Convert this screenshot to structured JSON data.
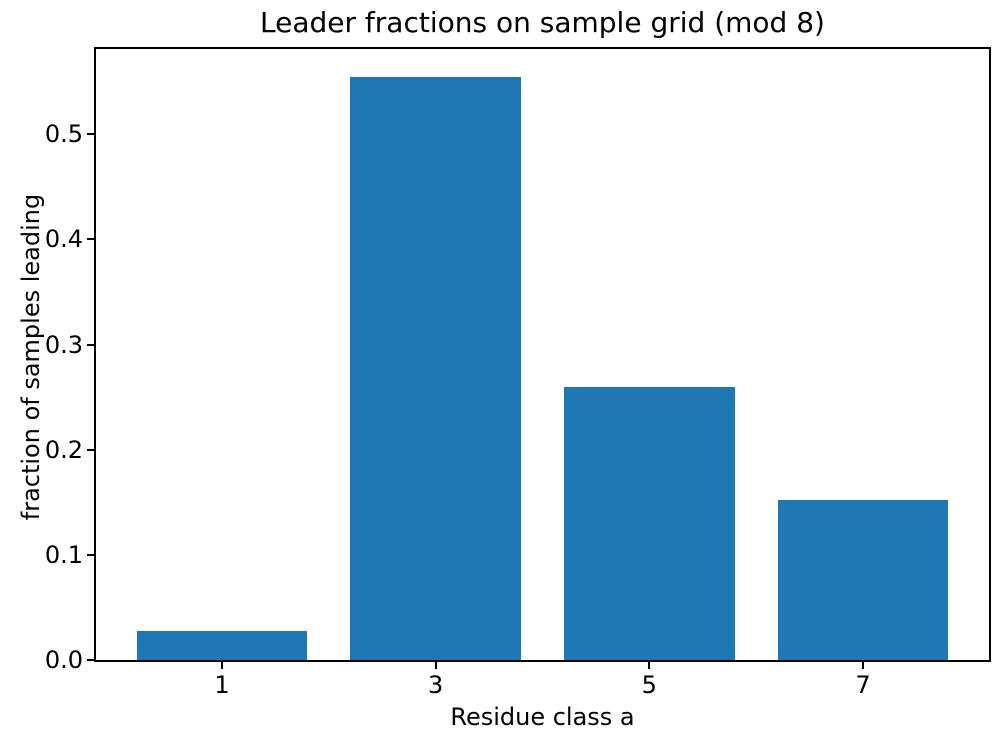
{
  "chart_data": {
    "type": "bar",
    "title": "Leader fractions on sample grid (mod 8)",
    "xlabel": "Residue class a",
    "ylabel": "fraction of samples leading",
    "categories": [
      "1",
      "3",
      "5",
      "7"
    ],
    "x": [
      1,
      3,
      5,
      7
    ],
    "values": [
      0.028,
      0.554,
      0.26,
      0.152
    ],
    "bar_color": "#1f77b4",
    "bar_width": 1.6,
    "xlim": [
      -0.18,
      8.18
    ],
    "ylim": [
      0,
      0.581
    ],
    "yticks": [
      0.0,
      0.1,
      0.2,
      0.3,
      0.4,
      0.5
    ],
    "ytick_labels": [
      "0.0",
      "0.1",
      "0.2",
      "0.3",
      "0.4",
      "0.5"
    ],
    "grid": false,
    "legend": "none",
    "spine_color": "#000000",
    "background_color": "#ffffff"
  }
}
